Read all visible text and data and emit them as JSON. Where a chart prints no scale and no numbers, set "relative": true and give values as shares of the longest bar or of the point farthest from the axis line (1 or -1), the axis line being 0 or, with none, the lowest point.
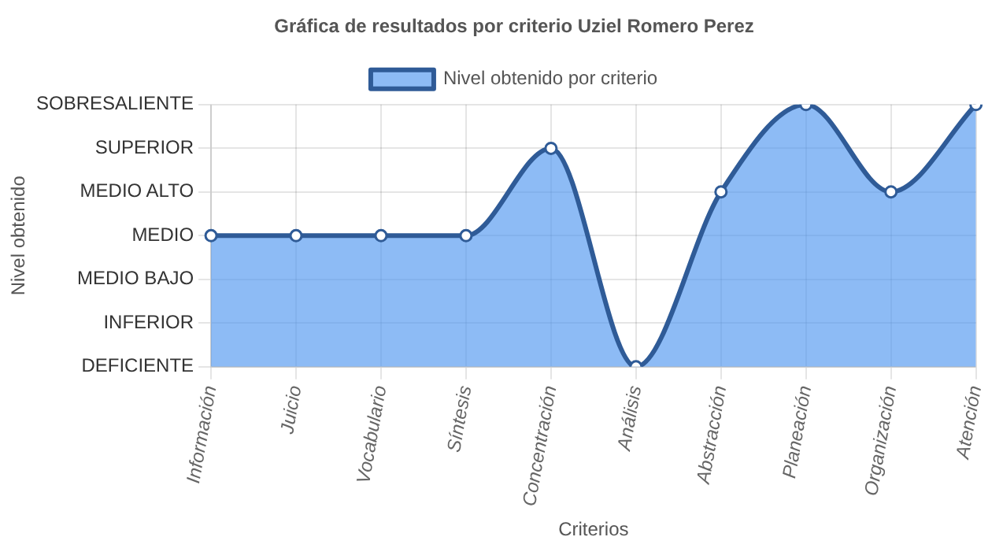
{
  "chart_data": {
    "type": "area",
    "title": "Gráfica de resultados por criterio Uziel Romero Perez",
    "xlabel": "Criterios",
    "annotations": [
      "Nivel obtenido"
    ],
    "categories": [
      "Información",
      "Juicio",
      "Vocabulario",
      "Síntesis",
      "Concentración",
      "Análisis",
      "Abstracción",
      "Planeación",
      "Organización",
      "Atención"
    ],
    "y_categories": [
      "SOBRESALIENTE",
      "SUPERIOR",
      "MEDIO ALTO",
      "MEDIO",
      "MEDIO BAJO",
      "INFERIOR",
      "DEFICIENTE"
    ],
    "relative": true,
    "series": [
      {
        "name": "Nivel obtenido por criterio",
        "color": "#2f5b97",
        "values": [
          0.5,
          0.5,
          0.5,
          0.5,
          0.833,
          0,
          0.667,
          1,
          0.667,
          1
        ]
      }
    ],
    "grid": true,
    "legend": "top",
    "marker": "circle",
    "line_style": "solid"
  }
}
